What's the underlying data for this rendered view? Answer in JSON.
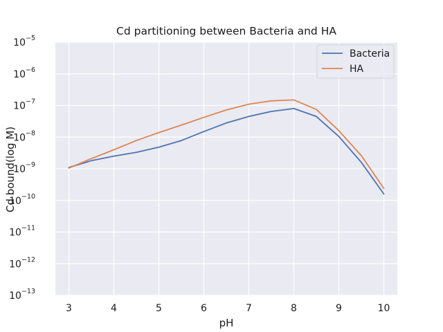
{
  "chart_data": {
    "type": "line",
    "title": "Cd partitioning between Bacteria and HA",
    "xlabel": "pH",
    "ylabel": "Cd bound(log M)",
    "y_scale": "log",
    "xlim": [
      2.7,
      10.3
    ],
    "ylim": [
      1e-13,
      1e-05
    ],
    "x_ticks": [
      3,
      4,
      5,
      6,
      7,
      8,
      9,
      10
    ],
    "y_ticks": [
      {
        "base": "10",
        "exp": "−13",
        "value": 1e-13
      },
      {
        "base": "10",
        "exp": "−12",
        "value": 1e-12
      },
      {
        "base": "10",
        "exp": "−11",
        "value": 1e-11
      },
      {
        "base": "10",
        "exp": "−10",
        "value": 1e-10
      },
      {
        "base": "10",
        "exp": "−9",
        "value": 1e-09
      },
      {
        "base": "10",
        "exp": "−8",
        "value": 1e-08
      },
      {
        "base": "10",
        "exp": "−7",
        "value": 1e-07
      },
      {
        "base": "10",
        "exp": "−6",
        "value": 1e-06
      },
      {
        "base": "10",
        "exp": "−5",
        "value": 1e-05
      }
    ],
    "grid": true,
    "legend_position": "top-right",
    "x": [
      3,
      3.5,
      4,
      4.5,
      5,
      5.5,
      6,
      6.5,
      7,
      7.5,
      8,
      8.5,
      9,
      9.5,
      10
    ],
    "series": [
      {
        "name": "Bacteria",
        "color": "#4c72b0",
        "values": [
          1.1e-09,
          1.8e-09,
          2.5e-09,
          3.3e-09,
          4.8e-09,
          7.8e-09,
          1.5e-08,
          2.8e-08,
          4.5e-08,
          6.5e-08,
          8e-08,
          4.5e-08,
          1.05e-08,
          1.6e-09,
          1.6e-10
        ]
      },
      {
        "name": "HA",
        "color": "#dd8452",
        "values": [
          1.05e-09,
          2.1e-09,
          4e-09,
          7.8e-09,
          1.4e-08,
          2.4e-08,
          4.2e-08,
          7.2e-08,
          1.1e-07,
          1.4e-07,
          1.5e-07,
          7.5e-08,
          1.6e-08,
          2.6e-09,
          2.4e-10
        ]
      }
    ]
  },
  "style": {
    "plot_bg": "#eaeaf2",
    "grid_color": "#ffffff"
  }
}
